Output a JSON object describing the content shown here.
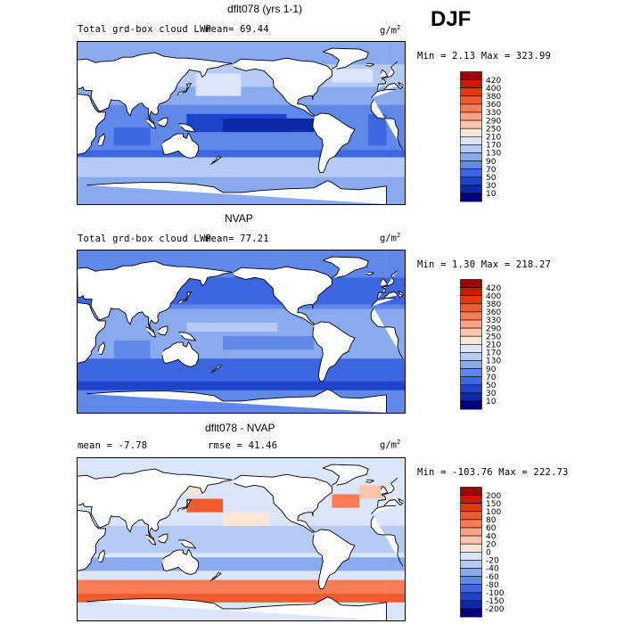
{
  "season": "DJF",
  "panels": [
    {
      "title": "dflt078 (yrs 1-1)",
      "field_label": "Total grd-box cloud LWP",
      "stat1": "mean=  69.44",
      "stat2": "",
      "units": "g/m",
      "units_exp": "2",
      "minmax": "Min =   2.13 Max = 323.99",
      "legend": [
        "420",
        "400",
        "380",
        "360",
        "330",
        "290",
        "250",
        "210",
        "170",
        "130",
        "90",
        "70",
        "50",
        "30",
        "10"
      ],
      "colors": [
        "#a00000",
        "#cc1a00",
        "#e23a10",
        "#f25a30",
        "#f87c55",
        "#fba383",
        "#fdc6ac",
        "#fde6d6",
        "#dbe6fb",
        "#b5cbf6",
        "#8aaaf0",
        "#5f88ea",
        "#3c66e2",
        "#1e44cc",
        "#0c2aa8",
        "#000080"
      ]
    },
    {
      "title": "NVAP",
      "field_label": "Total grd-box cloud LWP",
      "stat1": "mean=  77.21",
      "stat2": "",
      "units": "g/m",
      "units_exp": "2",
      "minmax": "Min =   1.30 Max = 218.27",
      "legend": [
        "420",
        "400",
        "380",
        "360",
        "330",
        "290",
        "250",
        "210",
        "170",
        "130",
        "90",
        "70",
        "50",
        "30",
        "10"
      ],
      "colors": [
        "#a00000",
        "#cc1a00",
        "#e23a10",
        "#f25a30",
        "#f87c55",
        "#fba383",
        "#fdc6ac",
        "#fde6d6",
        "#dbe6fb",
        "#b5cbf6",
        "#8aaaf0",
        "#5f88ea",
        "#3c66e2",
        "#1e44cc",
        "#0c2aa8",
        "#000080"
      ]
    },
    {
      "title": "dflt078 - NVAP",
      "field_label": "",
      "stat1": "mean =  -7.78",
      "stat2": "rmse =  41.46",
      "units": "g/m",
      "units_exp": "2",
      "minmax": "Min = -103.76 Max = 222.73",
      "legend": [
        "200",
        "150",
        "100",
        "80",
        "60",
        "40",
        "20",
        "0",
        "-20",
        "-40",
        "-60",
        "-80",
        "-100",
        "-150",
        "-200"
      ],
      "colors": [
        "#a00000",
        "#cc1a00",
        "#e23a10",
        "#f25a30",
        "#f87c55",
        "#fba383",
        "#fdc6ac",
        "#fde6d6",
        "#dbe6fb",
        "#b5cbf6",
        "#8aaaf0",
        "#5f88ea",
        "#3c66e2",
        "#1e44cc",
        "#0c2aa8",
        "#000080"
      ]
    }
  ]
}
